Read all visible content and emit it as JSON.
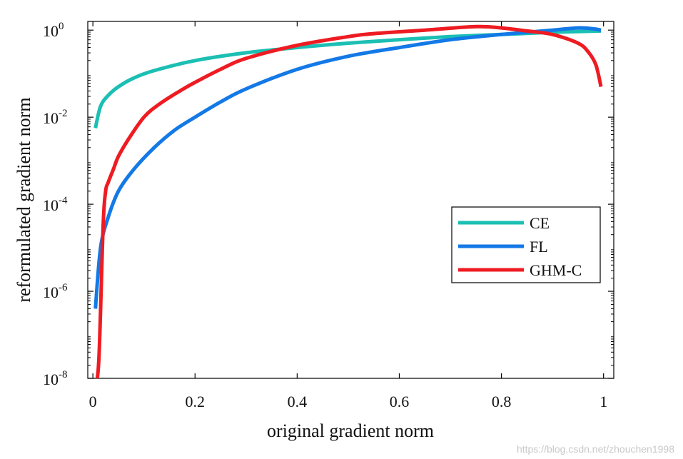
{
  "chart_data": {
    "type": "line",
    "title": "",
    "xlabel": "original gradient norm",
    "ylabel": "reformulated gradient norm",
    "xlim": [
      -0.01,
      1.02
    ],
    "ylim_log10": [
      -8,
      0.2
    ],
    "xticks": [
      0,
      0.2,
      0.4,
      0.6,
      0.8,
      1
    ],
    "xtick_labels": [
      "0",
      "0.2",
      "0.4",
      "0.6",
      "0.8",
      "1"
    ],
    "yticks": [
      {
        "base": "10",
        "exp": "0",
        "log10": 0
      },
      {
        "base": "10",
        "exp": "-2",
        "log10": -2
      },
      {
        "base": "10",
        "exp": "-4",
        "log10": -4
      },
      {
        "base": "10",
        "exp": "-6",
        "log10": -6
      },
      {
        "base": "10",
        "exp": "-8",
        "log10": -8
      }
    ],
    "legend_position": "right-center",
    "series": [
      {
        "name": "CE",
        "color": "#1BBFB3",
        "x": [
          0.005,
          0.015,
          0.03,
          0.05,
          0.08,
          0.12,
          0.2,
          0.3,
          0.4,
          0.5,
          0.6,
          0.7,
          0.8,
          0.9,
          0.995
        ],
        "y_log10": [
          -2.25,
          -1.75,
          -1.5,
          -1.3,
          -1.1,
          -0.93,
          -0.7,
          -0.52,
          -0.4,
          -0.3,
          -0.22,
          -0.15,
          -0.1,
          -0.05,
          -0.02
        ]
      },
      {
        "name": "FL",
        "color": "#1379E6",
        "x": [
          0.005,
          0.015,
          0.03,
          0.05,
          0.08,
          0.12,
          0.16,
          0.2,
          0.25,
          0.3,
          0.4,
          0.5,
          0.6,
          0.7,
          0.8,
          0.9,
          0.95,
          0.98,
          0.995
        ],
        "y_log10": [
          -6.4,
          -5.0,
          -4.3,
          -3.7,
          -3.2,
          -2.7,
          -2.3,
          -2.0,
          -1.65,
          -1.35,
          -0.9,
          -0.6,
          -0.4,
          -0.22,
          -0.1,
          0.0,
          0.05,
          0.03,
          0.0
        ]
      },
      {
        "name": "GHM-C",
        "color": "#EE1C22",
        "x": [
          0.005,
          0.012,
          0.02,
          0.025,
          0.03,
          0.04,
          0.05,
          0.07,
          0.1,
          0.13,
          0.17,
          0.2,
          0.25,
          0.3,
          0.4,
          0.5,
          0.55,
          0.65,
          0.75,
          0.8,
          0.85,
          0.9,
          0.95,
          0.97,
          0.985,
          0.995
        ],
        "y_log10": [
          -8.2,
          -7.5,
          -4.5,
          -3.7,
          -3.5,
          -3.2,
          -2.9,
          -2.5,
          -2.0,
          -1.7,
          -1.4,
          -1.2,
          -0.9,
          -0.65,
          -0.35,
          -0.15,
          -0.08,
          0.0,
          0.08,
          0.05,
          -0.02,
          -0.1,
          -0.3,
          -0.5,
          -0.8,
          -1.3
        ]
      }
    ]
  },
  "watermark": "https://blog.csdn.net/zhouchen1998"
}
